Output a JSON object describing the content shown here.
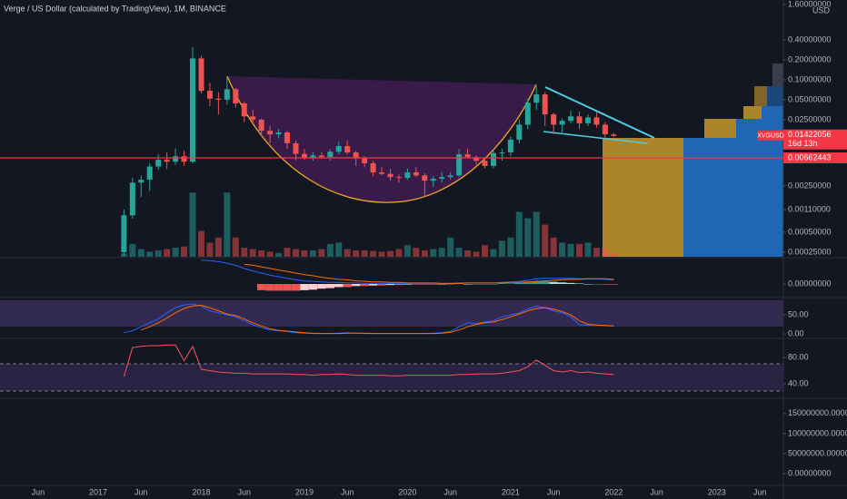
{
  "chart_data": {
    "type": "candlestick",
    "title": "Verge / US Dollar (calculated by TradingView), 1M, BINANCE",
    "unit": "USD",
    "symbol": "XVGUSD",
    "countdown": "16d 13h",
    "last_price": 0.01422056,
    "line_price": 0.00662443,
    "log_scale": true,
    "colors": {
      "up": "#26a69a",
      "down": "#ef5350",
      "line": "#f23645",
      "label": "#f23645"
    },
    "xlim": [
      "2016-02",
      "2023-08"
    ],
    "xticks": [
      {
        "value": "2016-06",
        "label": "Jun"
      },
      {
        "value": "2017-01",
        "label": "2017"
      },
      {
        "value": "2017-06",
        "label": "Jun"
      },
      {
        "value": "2018-01",
        "label": "2018"
      },
      {
        "value": "2018-06",
        "label": "Jun"
      },
      {
        "value": "2019-01",
        "label": "2019"
      },
      {
        "value": "2019-06",
        "label": "Jun"
      },
      {
        "value": "2020-01",
        "label": "2020"
      },
      {
        "value": "2020-06",
        "label": "Jun"
      },
      {
        "value": "2021-01",
        "label": "2021"
      },
      {
        "value": "2021-06",
        "label": "Jun"
      },
      {
        "value": "2022-01",
        "label": "2022"
      },
      {
        "value": "2022-06",
        "label": "Jun"
      },
      {
        "value": "2023-01",
        "label": "2023"
      },
      {
        "value": "2023-06",
        "label": "Jun"
      }
    ],
    "ylim": [
      0.000213,
      1.6
    ],
    "yticks": [
      {
        "value": 1.6,
        "label": "1.60000000"
      },
      {
        "value": 0.4,
        "label": "0.40000000"
      },
      {
        "value": 0.2,
        "label": "0.20000000"
      },
      {
        "value": 0.1,
        "label": "0.10000000"
      },
      {
        "value": 0.05,
        "label": "0.05000000"
      },
      {
        "value": 0.025,
        "label": "0.02500000"
      },
      {
        "value": 0.0025,
        "label": "0.00250000"
      },
      {
        "value": 0.0011,
        "label": "0.00110000"
      },
      {
        "value": 0.0005,
        "label": "0.00050000"
      },
      {
        "value": 0.00025,
        "label": "0.00025000"
      }
    ],
    "x": [
      "2017-04",
      "2017-05",
      "2017-06",
      "2017-07",
      "2017-08",
      "2017-09",
      "2017-10",
      "2017-11",
      "2017-12",
      "2018-01",
      "2018-02",
      "2018-03",
      "2018-04",
      "2018-05",
      "2018-06",
      "2018-07",
      "2018-08",
      "2018-09",
      "2018-10",
      "2018-11",
      "2018-12",
      "2019-01",
      "2019-02",
      "2019-03",
      "2019-04",
      "2019-05",
      "2019-06",
      "2019-07",
      "2019-08",
      "2019-09",
      "2019-10",
      "2019-11",
      "2019-12",
      "2020-01",
      "2020-02",
      "2020-03",
      "2020-04",
      "2020-05",
      "2020-06",
      "2020-07",
      "2020-08",
      "2020-09",
      "2020-10",
      "2020-11",
      "2020-12",
      "2021-01",
      "2021-02",
      "2021-03",
      "2021-04",
      "2021-05",
      "2021-06",
      "2021-07",
      "2021-08",
      "2021-09",
      "2021-10",
      "2021-11",
      "2021-12",
      "2022-01"
    ],
    "open": [
      0.00025,
      0.0009,
      0.0028,
      0.0031,
      0.0049,
      0.0062,
      0.0058,
      0.007,
      0.0058,
      0.21,
      0.068,
      0.052,
      0.05,
      0.072,
      0.044,
      0.028,
      0.025,
      0.017,
      0.015,
      0.016,
      0.011,
      0.0076,
      0.0066,
      0.0072,
      0.0068,
      0.0082,
      0.01,
      0.008,
      0.0065,
      0.0055,
      0.004,
      0.0038,
      0.0034,
      0.0033,
      0.004,
      0.0036,
      0.003,
      0.0032,
      0.0034,
      0.0036,
      0.0075,
      0.0068,
      0.006,
      0.005,
      0.0078,
      0.008,
      0.0125,
      0.021,
      0.045,
      0.06,
      0.03,
      0.021,
      0.024,
      0.028,
      0.022,
      0.027,
      0.021,
      0.015
    ],
    "high": [
      0.0011,
      0.0033,
      0.0036,
      0.0055,
      0.0075,
      0.008,
      0.0092,
      0.0085,
      0.31,
      0.23,
      0.09,
      0.065,
      0.11,
      0.075,
      0.047,
      0.035,
      0.026,
      0.02,
      0.018,
      0.017,
      0.012,
      0.009,
      0.008,
      0.008,
      0.009,
      0.0115,
      0.012,
      0.0085,
      0.007,
      0.006,
      0.0048,
      0.0045,
      0.0037,
      0.0046,
      0.0048,
      0.0039,
      0.0035,
      0.004,
      0.004,
      0.009,
      0.0092,
      0.0072,
      0.0064,
      0.009,
      0.009,
      0.014,
      0.025,
      0.052,
      0.08,
      0.065,
      0.032,
      0.026,
      0.034,
      0.033,
      0.03,
      0.032,
      0.023,
      0.0158
    ],
    "low": [
      0.00022,
      0.0008,
      0.0017,
      0.0021,
      0.0044,
      0.0045,
      0.0052,
      0.005,
      0.0055,
      0.062,
      0.04,
      0.03,
      0.042,
      0.038,
      0.023,
      0.022,
      0.014,
      0.011,
      0.013,
      0.009,
      0.0061,
      0.0062,
      0.006,
      0.0064,
      0.006,
      0.0075,
      0.0075,
      0.005,
      0.0048,
      0.0035,
      0.0036,
      0.003,
      0.0028,
      0.0031,
      0.0034,
      0.0017,
      0.0024,
      0.0028,
      0.0031,
      0.0034,
      0.0065,
      0.0052,
      0.0046,
      0.0046,
      0.006,
      0.007,
      0.011,
      0.018,
      0.035,
      0.02,
      0.015,
      0.016,
      0.022,
      0.018,
      0.02,
      0.019,
      0.013,
      0.0138
    ],
    "close": [
      0.0009,
      0.0028,
      0.0031,
      0.0049,
      0.0062,
      0.0058,
      0.007,
      0.0058,
      0.21,
      0.068,
      0.052,
      0.05,
      0.072,
      0.044,
      0.028,
      0.025,
      0.017,
      0.015,
      0.016,
      0.011,
      0.0076,
      0.0066,
      0.0072,
      0.0068,
      0.0082,
      0.01,
      0.008,
      0.0065,
      0.0055,
      0.004,
      0.0038,
      0.0034,
      0.0033,
      0.004,
      0.0036,
      0.003,
      0.0032,
      0.0034,
      0.0036,
      0.0075,
      0.0068,
      0.006,
      0.005,
      0.0078,
      0.008,
      0.0125,
      0.021,
      0.045,
      0.06,
      0.03,
      0.021,
      0.024,
      0.028,
      0.022,
      0.027,
      0.021,
      0.015,
      0.01422056
    ],
    "volume_ylim": [
      0,
      400
    ],
    "volume": [
      5,
      20,
      12,
      8,
      10,
      12,
      14,
      16,
      100,
      40,
      22,
      30,
      100,
      30,
      14,
      12,
      10,
      8,
      6,
      14,
      12,
      10,
      10,
      12,
      20,
      22,
      12,
      10,
      10,
      9,
      8,
      9,
      12,
      18,
      14,
      10,
      12,
      14,
      30,
      14,
      10,
      8,
      18,
      12,
      25,
      30,
      70,
      60,
      70,
      50,
      30,
      22,
      20,
      20,
      22,
      14,
      14,
      6
    ],
    "macd": {
      "ylim": [
        -0.0245,
        0.049
      ],
      "yticks": [
        {
          "value": 0,
          "label": "0.00000000"
        }
      ],
      "colors": {
        "macd": "#2962ff",
        "signal": "#ff6d00",
        "neg_grow": "#ef5350",
        "neg_fall": "#ffcdd2",
        "pos_grow": "#26a69a",
        "pos_fall": "#b2dfdb"
      },
      "macd": [
        null,
        null,
        null,
        null,
        null,
        null,
        null,
        null,
        null,
        0.046,
        0.045,
        0.043,
        0.04,
        0.036,
        0.03,
        0.025,
        0.021,
        0.017,
        0.014,
        0.011,
        0.008,
        0.006,
        0.005,
        0.004,
        0.003,
        0.003,
        0.002,
        0.002,
        0.001,
        0.001,
        0.001,
        0.001,
        0.001,
        0.001,
        0.001,
        0.001,
        0.001,
        0.001,
        0.001,
        0.002,
        0.002,
        0.002,
        0.002,
        0.002,
        0.003,
        0.004,
        0.005,
        0.007,
        0.01,
        0.011,
        0.011,
        0.011,
        0.011,
        0.01,
        0.01,
        0.01,
        0.009,
        0.008
      ],
      "signal": [
        null,
        null,
        null,
        null,
        null,
        null,
        null,
        null,
        null,
        null,
        null,
        null,
        null,
        null,
        0.038,
        0.036,
        0.033,
        0.03,
        0.027,
        0.024,
        0.021,
        0.018,
        0.016,
        0.013,
        0.011,
        0.009,
        0.008,
        0.006,
        0.005,
        0.004,
        0.004,
        0.003,
        0.003,
        0.002,
        0.002,
        0.002,
        0.002,
        0.001,
        0.001,
        0.001,
        0.002,
        0.002,
        0.002,
        0.002,
        0.002,
        0.003,
        0.003,
        0.004,
        0.005,
        0.006,
        0.007,
        0.008,
        0.009,
        0.009,
        0.01,
        0.01,
        0.01,
        0.009
      ],
      "histogram": [
        null,
        null,
        null,
        null,
        null,
        null,
        null,
        null,
        null,
        null,
        null,
        null,
        null,
        null,
        null,
        null,
        -0.012,
        -0.013,
        -0.013,
        -0.013,
        -0.013,
        -0.012,
        -0.011,
        -0.009,
        -0.008,
        -0.006,
        -0.006,
        -0.004,
        -0.004,
        -0.003,
        -0.003,
        -0.002,
        -0.002,
        -0.001,
        -0.001,
        -0.001,
        -0.001,
        0,
        0,
        0.001,
        0,
        0,
        0,
        0,
        0.001,
        0.001,
        0.002,
        0.003,
        0.005,
        0.005,
        0.004,
        0.003,
        0.002,
        0.001,
        0,
        0,
        -0.001,
        -0.001
      ]
    },
    "rsi": {
      "ylim": [
        -7,
        91
      ],
      "yticks": [
        {
          "value": 50,
          "label": "50.00"
        },
        {
          "value": 0,
          "label": "0.00"
        }
      ],
      "colors": {
        "k": "#2962ff",
        "d": "#ff6d00"
      },
      "k": [
        5,
        10,
        20,
        30,
        40,
        55,
        68,
        75,
        77,
        72,
        60,
        55,
        50,
        45,
        35,
        25,
        18,
        12,
        10,
        8,
        5,
        4,
        3,
        3,
        3,
        4,
        5,
        4,
        3,
        3,
        3,
        3,
        3,
        3,
        3,
        3,
        4,
        5,
        8,
        20,
        30,
        28,
        32,
        35,
        45,
        50,
        55,
        65,
        72,
        68,
        60,
        55,
        45,
        25,
        24,
        24,
        23,
        22
      ],
      "d": [
        null,
        null,
        12,
        20,
        30,
        42,
        55,
        66,
        72,
        74,
        68,
        60,
        52,
        48,
        40,
        30,
        22,
        15,
        11,
        9,
        7,
        5,
        4,
        3,
        3,
        3,
        4,
        4,
        4,
        3,
        3,
        3,
        3,
        3,
        3,
        3,
        3,
        4,
        6,
        12,
        20,
        26,
        30,
        32,
        38,
        45,
        52,
        60,
        66,
        68,
        64,
        58,
        50,
        35,
        26,
        24,
        23,
        22
      ]
    },
    "stoch": {
      "ylim": [
        19.3,
        107.6
      ],
      "yticks": [
        {
          "value": 80,
          "label": "80.00"
        },
        {
          "value": 40,
          "label": "40.00"
        }
      ],
      "color": "#f7525f",
      "values": [
        51,
        95,
        97,
        98,
        98,
        99,
        99,
        75,
        97,
        62,
        60,
        58,
        57,
        56,
        56,
        55,
        55,
        55,
        55,
        55,
        54,
        54,
        53,
        54,
        54,
        55,
        54,
        53,
        53,
        53,
        53,
        52,
        52,
        53,
        53,
        53,
        53,
        53,
        53,
        54,
        54,
        55,
        55,
        55,
        56,
        58,
        60,
        66,
        76,
        68,
        60,
        58,
        60,
        57,
        58,
        56,
        55,
        54
      ]
    },
    "pane5": {
      "ylim": [
        -29500000,
        186000000
      ],
      "yticks": [
        {
          "value": 150000000,
          "label": "150000000.00000000"
        },
        {
          "value": 100000000,
          "label": "100000000.00000000"
        },
        {
          "value": 50000000,
          "label": "50000000.00000000"
        },
        {
          "value": 0,
          "label": "0.00000000"
        }
      ]
    }
  }
}
